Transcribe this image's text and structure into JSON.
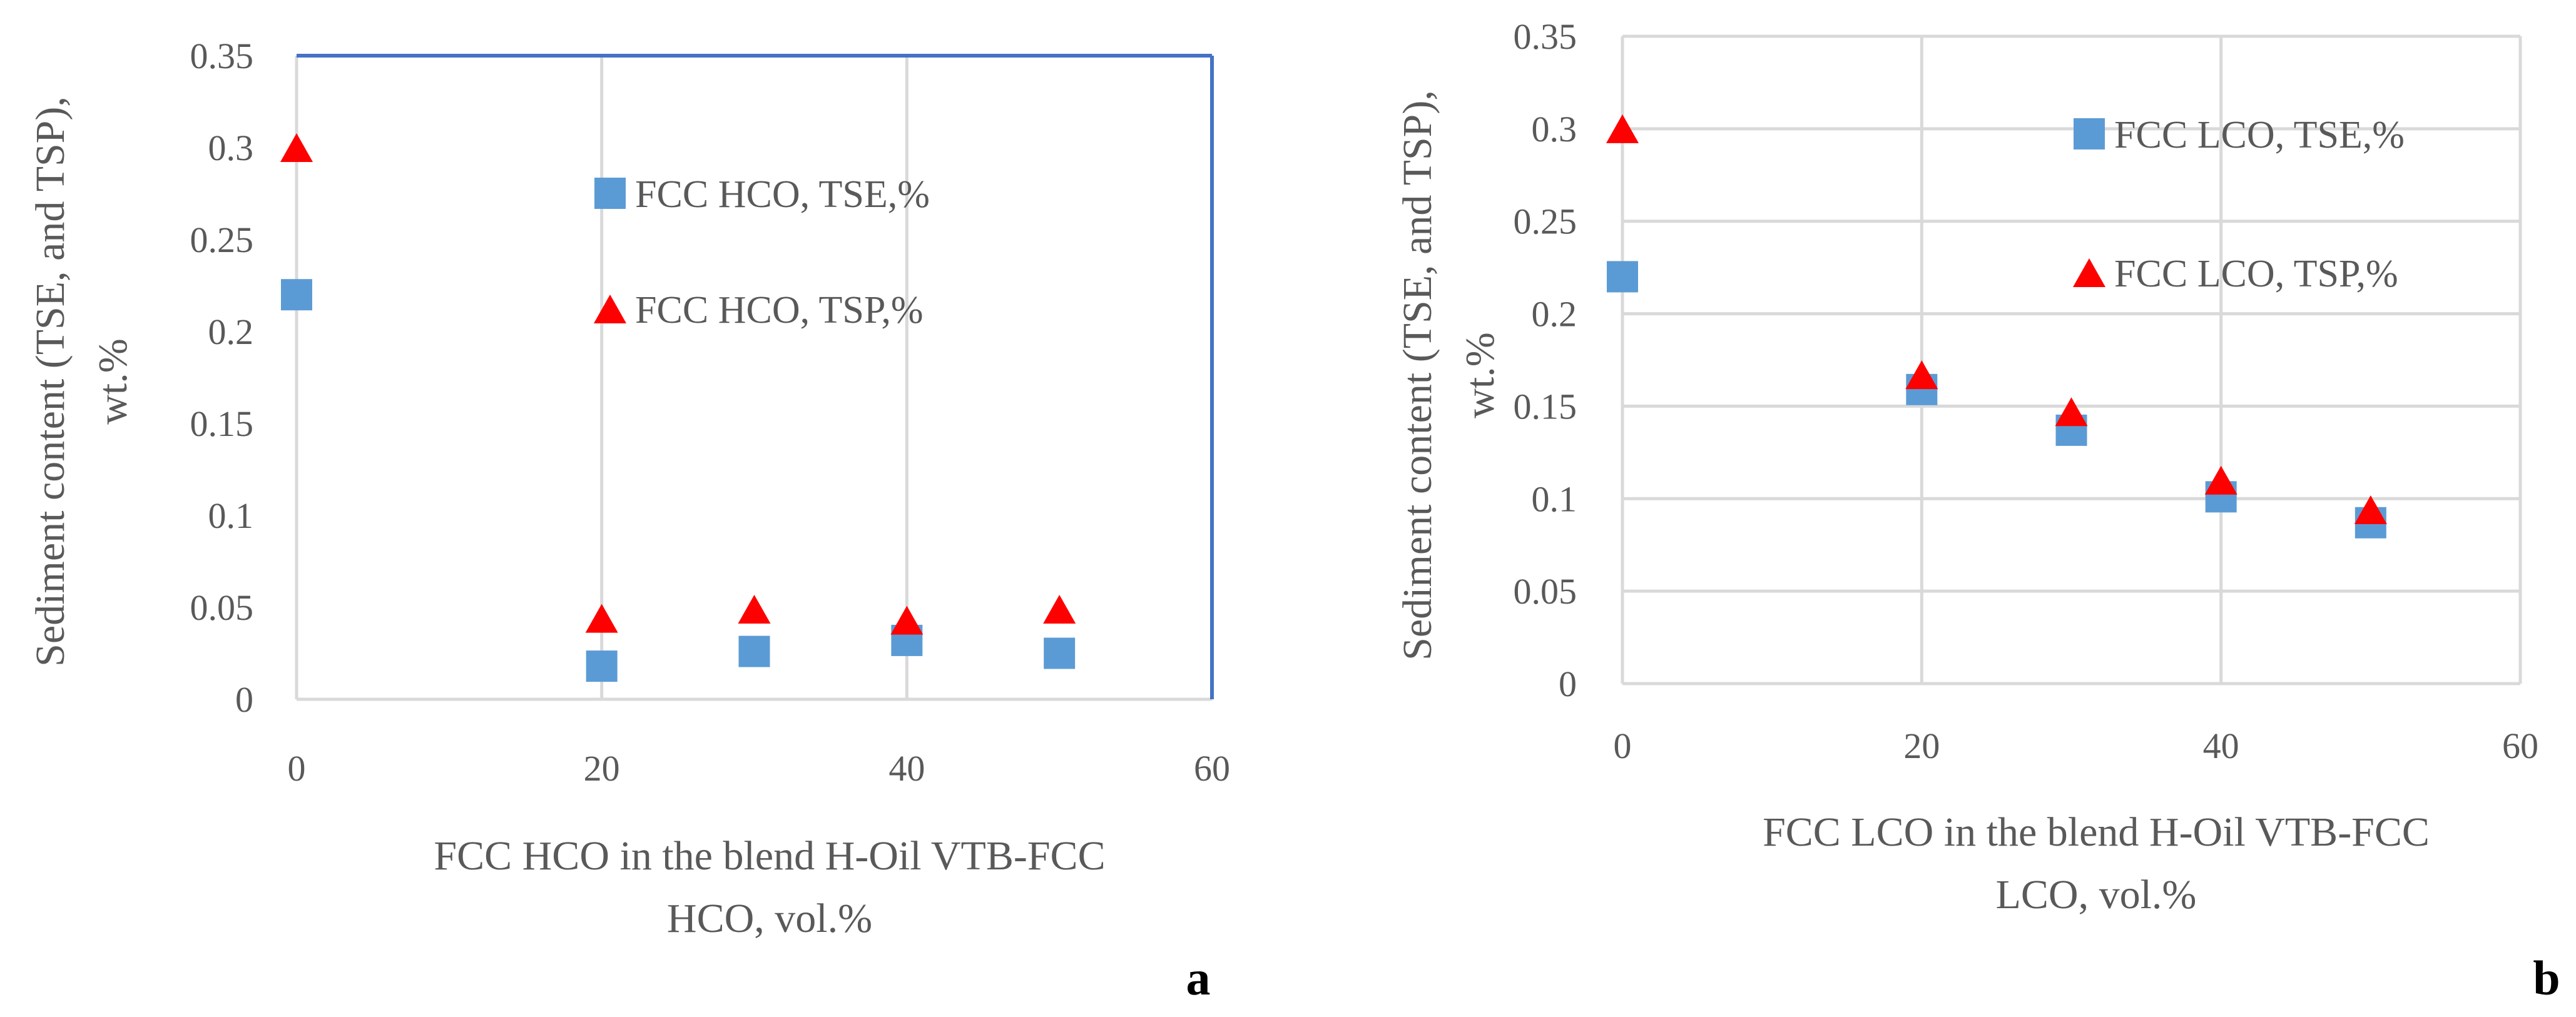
{
  "colors": {
    "tse_marker": "#5b9bd5",
    "tsp_marker": "#ff0000",
    "grid": "#d9d9d9",
    "frame_a": "#4472c4",
    "text": "#595959"
  },
  "chart_data": [
    {
      "type": "scatter",
      "panel_label": "a",
      "xlabel_lines": [
        "FCC HCO in the blend H-Oil VTB-FCC",
        "HCO, vol.%"
      ],
      "ylabel_lines": [
        "Sediment content (TSE, and TSP),",
        "wt.%"
      ],
      "xlim": [
        0,
        60
      ],
      "ylim": [
        0,
        0.35
      ],
      "xticks": [
        0,
        20,
        40,
        60
      ],
      "yticks": [
        0,
        0.05,
        0.1,
        0.15,
        0.2,
        0.25,
        0.3,
        0.35
      ],
      "xtick_labels": [
        "0",
        "20",
        "40",
        "60"
      ],
      "ytick_labels": [
        "0",
        "0.05",
        "0.1",
        "0.15",
        "0.2",
        "0.25",
        "0.3",
        "0.35"
      ],
      "grid": "vertical",
      "legend_position": "upper-center",
      "series": [
        {
          "name": "FCC HCO, TSE,%",
          "marker": "square",
          "x": [
            0,
            20,
            30,
            40,
            50
          ],
          "y": [
            0.22,
            0.018,
            0.026,
            0.032,
            0.025
          ]
        },
        {
          "name": "FCC HCO, TSP,%",
          "marker": "triangle",
          "x": [
            0,
            20,
            30,
            40,
            50
          ],
          "y": [
            0.3,
            0.044,
            0.049,
            0.043,
            0.049
          ]
        }
      ]
    },
    {
      "type": "scatter",
      "panel_label": "b",
      "xlabel_lines": [
        "FCC LCO in the blend H-Oil VTB-FCC",
        "LCO, vol.%"
      ],
      "ylabel_lines": [
        "Sediment content (TSE, and TSP),",
        "wt.%"
      ],
      "xlim": [
        0,
        60
      ],
      "ylim": [
        0,
        0.35
      ],
      "xticks": [
        0,
        20,
        40,
        60
      ],
      "yticks": [
        0,
        0.05,
        0.1,
        0.15,
        0.2,
        0.25,
        0.3,
        0.35
      ],
      "xtick_labels": [
        "0",
        "20",
        "40",
        "60"
      ],
      "ytick_labels": [
        "0",
        "0.05",
        "0.1",
        "0.15",
        "0.2",
        "0.25",
        "0.3",
        "0.35"
      ],
      "grid": "both",
      "legend_position": "upper-right",
      "series": [
        {
          "name": "FCC LCO, TSE,%",
          "marker": "square",
          "x": [
            0,
            20,
            30,
            40,
            50
          ],
          "y": [
            0.22,
            0.159,
            0.137,
            0.101,
            0.087
          ]
        },
        {
          "name": "FCC LCO, TSP,%",
          "marker": "triangle",
          "x": [
            0,
            20,
            30,
            40,
            50
          ],
          "y": [
            0.3,
            0.167,
            0.147,
            0.11,
            0.094
          ]
        }
      ]
    }
  ]
}
